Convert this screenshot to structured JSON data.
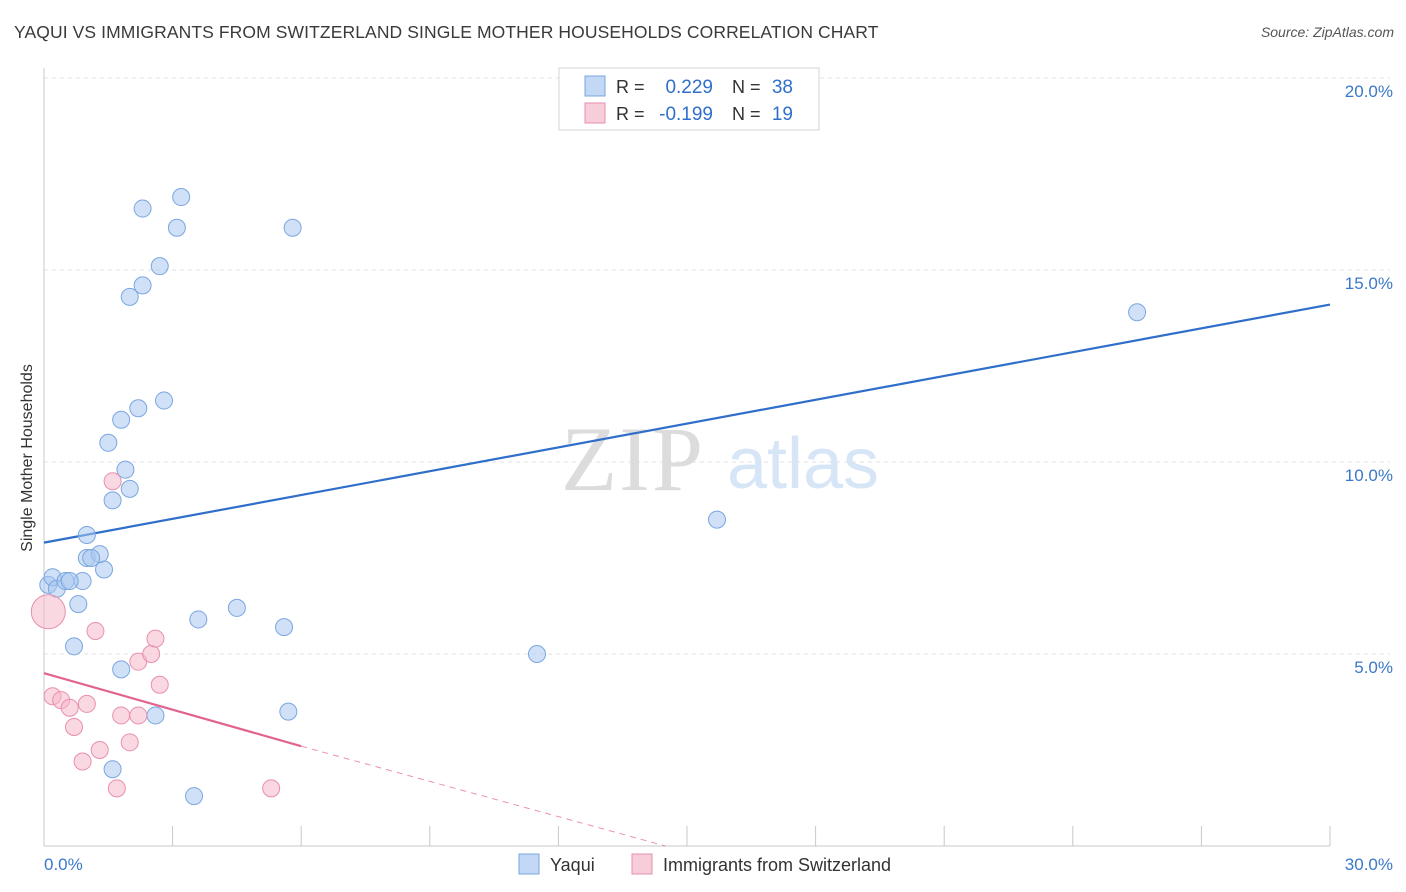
{
  "header": {
    "title": "YAQUI VS IMMIGRANTS FROM SWITZERLAND SINGLE MOTHER HOUSEHOLDS CORRELATION CHART",
    "source": "Source: ZipAtlas.com"
  },
  "watermark": {
    "zip": "ZIP",
    "atlas": "atlas"
  },
  "legend_box": {
    "rows": [
      {
        "r_label": "R =",
        "r_value": "0.229",
        "n_label": "N =",
        "n_value": "38",
        "color": "#a9c8f0"
      },
      {
        "r_label": "R =",
        "r_value": "-0.199",
        "n_label": "N =",
        "n_value": "19",
        "color": "#f5b8cb"
      }
    ]
  },
  "bottom_legend": [
    {
      "label": "Yaqui",
      "color": "#a9c8f0"
    },
    {
      "label": "Immigrants from Switzerland",
      "color": "#f5b8cb"
    }
  ],
  "chart_data": {
    "type": "scatter",
    "title": "YAQUI VS IMMIGRANTS FROM SWITZERLAND SINGLE MOTHER HOUSEHOLDS CORRELATION CHART",
    "xlabel": "",
    "ylabel": "Single Mother Households",
    "xlim": [
      0,
      30
    ],
    "ylim": [
      0,
      20
    ],
    "x_tick_labels": [
      "0.0%",
      "30.0%"
    ],
    "y_ticks": [
      5,
      10,
      15,
      20
    ],
    "y_tick_labels": [
      "5.0%",
      "10.0%",
      "15.0%",
      "20.0%"
    ],
    "grid": true,
    "series": [
      {
        "name": "Yaqui",
        "color": "#a9c8f0",
        "stroke": "#7aa6e0",
        "line_color": "#2f6fca",
        "trend": {
          "x": [
            0,
            30
          ],
          "y": [
            7.9,
            14.1
          ]
        },
        "points": [
          [
            0.1,
            6.8
          ],
          [
            0.2,
            7.0
          ],
          [
            0.3,
            6.7
          ],
          [
            0.5,
            6.9
          ],
          [
            0.9,
            6.9
          ],
          [
            0.8,
            6.3
          ],
          [
            0.7,
            5.2
          ],
          [
            1.0,
            7.5
          ],
          [
            1.4,
            7.2
          ],
          [
            1.3,
            7.6
          ],
          [
            1.0,
            8.1
          ],
          [
            1.6,
            9.0
          ],
          [
            1.5,
            10.5
          ],
          [
            1.8,
            11.1
          ],
          [
            1.9,
            9.8
          ],
          [
            2.0,
            9.3
          ],
          [
            2.2,
            11.4
          ],
          [
            2.8,
            11.6
          ],
          [
            2.7,
            15.1
          ],
          [
            2.0,
            14.3
          ],
          [
            2.3,
            14.6
          ],
          [
            3.1,
            16.1
          ],
          [
            3.2,
            16.9
          ],
          [
            2.3,
            16.6
          ],
          [
            5.8,
            16.1
          ],
          [
            3.6,
            5.9
          ],
          [
            4.5,
            6.2
          ],
          [
            5.6,
            5.7
          ],
          [
            1.8,
            4.6
          ],
          [
            2.6,
            3.4
          ],
          [
            1.6,
            2.0
          ],
          [
            3.5,
            1.3
          ],
          [
            5.7,
            3.5
          ],
          [
            11.5,
            5.0
          ],
          [
            15.7,
            8.5
          ],
          [
            25.5,
            13.9
          ],
          [
            1.1,
            7.5
          ],
          [
            0.6,
            6.9
          ]
        ]
      },
      {
        "name": "Immigrants from Switzerland",
        "color": "#f5b8cb",
        "stroke": "#e98fae",
        "line_color": "#e0648e",
        "trend": {
          "x": [
            0,
            6.0
          ],
          "y": [
            4.5,
            2.6
          ]
        },
        "trend_dashed": {
          "x": [
            6.0,
            14.5
          ],
          "y": [
            2.6,
            0.0
          ]
        },
        "points": [
          [
            0.1,
            6.1
          ],
          [
            0.2,
            3.9
          ],
          [
            0.4,
            3.8
          ],
          [
            0.6,
            3.6
          ],
          [
            0.7,
            3.1
          ],
          [
            0.9,
            2.2
          ],
          [
            1.0,
            3.7
          ],
          [
            1.2,
            5.6
          ],
          [
            1.3,
            2.5
          ],
          [
            1.6,
            9.5
          ],
          [
            1.8,
            3.4
          ],
          [
            2.0,
            2.7
          ],
          [
            2.2,
            3.4
          ],
          [
            2.2,
            4.8
          ],
          [
            2.5,
            5.0
          ],
          [
            2.6,
            5.4
          ],
          [
            2.7,
            4.2
          ],
          [
            1.7,
            1.5
          ],
          [
            5.3,
            1.5
          ]
        ]
      }
    ]
  }
}
